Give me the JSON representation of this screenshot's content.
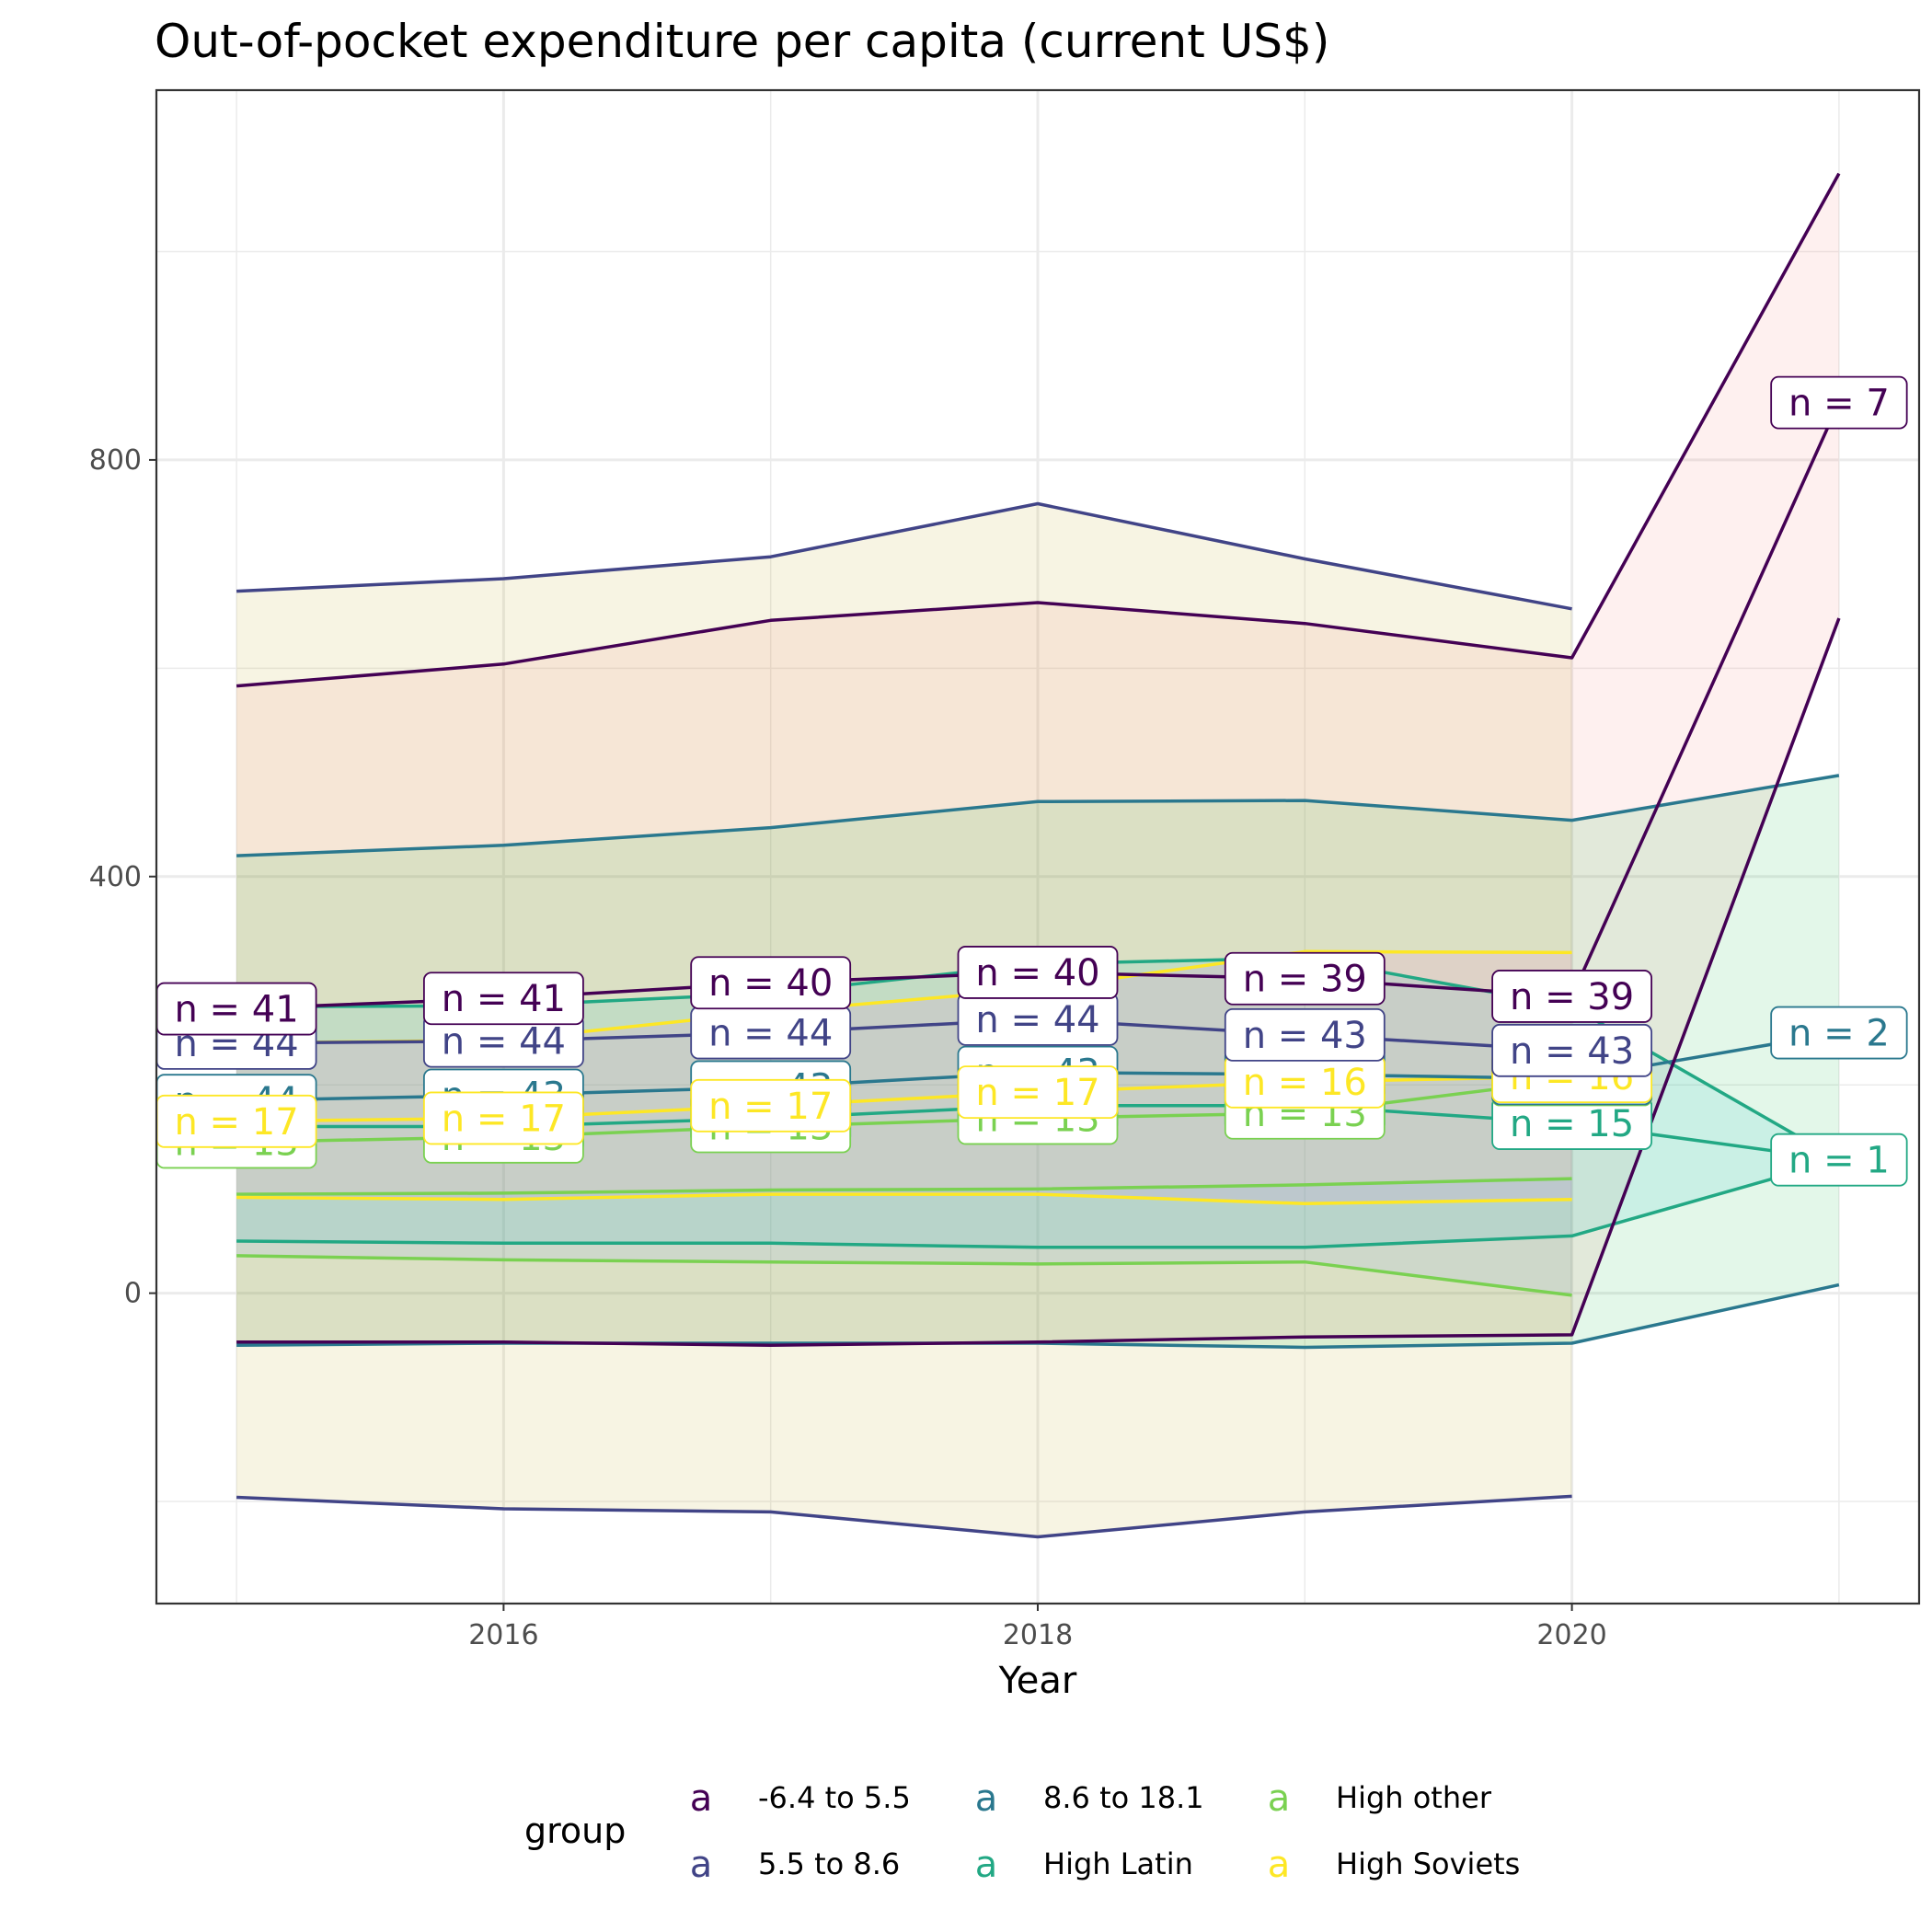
{
  "chart_data": {
    "type": "line",
    "title": "Out-of-pocket expenditure per capita (current US$)",
    "xlabel": "Year",
    "ylabel": "",
    "xlim": [
      2014.7,
      2021.3
    ],
    "ylim": [
      -298,
      1155
    ],
    "x_ticks": [
      2016,
      2018,
      2020
    ],
    "y_ticks": [
      0,
      400,
      800
    ],
    "grid": true,
    "legend_position": "bottom",
    "legend": {
      "title": "group",
      "key_glyph": "a",
      "entries": [
        "-6.4 to 5.5",
        "5.5 to 8.6",
        "8.6 to 18.1",
        "High Latin",
        "High other",
        "High Soviets"
      ]
    },
    "colors": {
      "-6.4 to 5.5": "#440154",
      "5.5 to 8.6": "#414487",
      "8.6 to 18.1": "#2A788E",
      "High Latin": "#22A884",
      "High other": "#7AD151",
      "High Soviets": "#FDE725"
    },
    "band_fills": {
      "-6.4 to 5.5": "#F8766D",
      "5.5 to 8.6": "#B79F00",
      "8.6 to 18.1": "#00BA38",
      "High Latin": "#00BFC4",
      "High other": "#619CFF",
      "High Soviets": "#F564E3"
    },
    "series": [
      {
        "name": "-6.4 to 5.5",
        "x": [
          2015,
          2016,
          2017,
          2018,
          2019,
          2020,
          2021
        ],
        "mean": [
          273,
          283,
          298,
          308,
          302,
          285,
          855
        ],
        "upper": [
          583,
          604,
          646,
          663,
          643,
          610,
          1075
        ],
        "lower": [
          -47,
          -47,
          -50,
          -47,
          -42,
          -40,
          648
        ],
        "n_labels": [
          "n = 41",
          "n = 41",
          "n = 40",
          "n = 40",
          "n = 39",
          "n = 39",
          "n = 7"
        ]
      },
      {
        "name": "5.5 to 8.6",
        "x": [
          2015,
          2016,
          2017,
          2018,
          2019,
          2020
        ],
        "mean": [
          240,
          242,
          250,
          263,
          248,
          233
        ],
        "upper": [
          674,
          686,
          707,
          758,
          705,
          657
        ],
        "lower": [
          -196,
          -207,
          -210,
          -234,
          -210,
          -195
        ],
        "n_labels": [
          "n = 44",
          "n = 44",
          "n = 44",
          "n = 44",
          "n = 43",
          "n = 43"
        ]
      },
      {
        "name": "8.6 to 18.1",
        "x": [
          2015,
          2016,
          2017,
          2018,
          2019,
          2020,
          2021
        ],
        "mean": [
          185,
          190,
          198,
          212,
          210,
          206,
          250
        ],
        "upper": [
          420,
          430,
          447,
          472,
          473,
          454,
          497
        ],
        "lower": [
          -50,
          -48,
          -48,
          -48,
          -52,
          -48,
          8
        ],
        "n_labels": [
          "n = 44",
          "n = 43",
          "n = 43",
          "n = 43",
          "n = 43",
          "n = 43",
          "n = 2"
        ]
      },
      {
        "name": "High Latin",
        "x": [
          2015,
          2016,
          2017,
          2018,
          2019,
          2020,
          2021
        ],
        "mean": [
          160,
          160,
          168,
          180,
          180,
          163,
          128
        ],
        "upper": [
          275,
          276,
          288,
          316,
          322,
          275,
          128
        ],
        "lower": [
          50,
          48,
          48,
          44,
          44,
          55,
          128
        ],
        "n_labels": [
          "n = 16",
          "n = 16",
          "n = 16",
          "n = 16",
          "n = 15",
          "n = 15",
          "n = 1"
        ]
      },
      {
        "name": "High other",
        "x": [
          2015,
          2016,
          2017,
          2018,
          2019,
          2020
        ],
        "mean": [
          145,
          150,
          160,
          168,
          173,
          205
        ],
        "upper": [
          95,
          96,
          99,
          100,
          104,
          110
        ],
        "lower": [
          36,
          32,
          30,
          28,
          30,
          -2
        ],
        "n_labels": [
          "n = 13",
          "n = 13",
          "n = 13",
          "n = 13",
          "n = 13",
          "n = 13"
        ]
      },
      {
        "name": "High Soviets",
        "x": [
          2015,
          2016,
          2017,
          2018,
          2019,
          2020
        ],
        "mean": [
          165,
          168,
          180,
          193,
          203,
          208
        ],
        "upper": [
          240,
          243,
          270,
          292,
          328,
          327
        ],
        "lower": [
          92,
          90,
          95,
          95,
          86,
          90
        ],
        "n_labels": [
          "n = 17",
          "n = 17",
          "n = 17",
          "n = 17",
          "n = 16",
          "n = 16"
        ]
      }
    ],
    "label_order": [
      "High Latin",
      "High other",
      "8.6 to 18.1",
      "High Soviets",
      "5.5 to 8.6",
      "-6.4 to 5.5"
    ]
  }
}
